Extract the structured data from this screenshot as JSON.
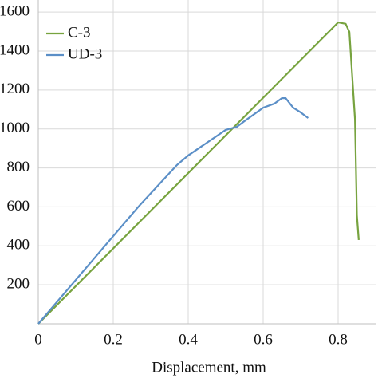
{
  "chart_data": {
    "type": "line",
    "x_label": "Displacement, mm",
    "xlim": [
      0,
      0.9
    ],
    "ylim": [
      0,
      1662
    ],
    "xticks": [
      0,
      0.2,
      0.4,
      0.6,
      0.8
    ],
    "yticks": [
      200,
      400,
      600,
      800,
      1000,
      1200,
      1400,
      1600
    ],
    "grid": true,
    "legend": "upper-left",
    "series": [
      {
        "name": "C-3",
        "color": "#77a33f",
        "x": [
          0,
          0.8,
          0.82,
          0.83,
          0.845,
          0.85,
          0.855
        ],
        "values": [
          0,
          1547,
          1540,
          1498,
          1048,
          557,
          430
        ]
      },
      {
        "name": "UD-3",
        "color": "#5b8fc7",
        "x": [
          0,
          0.1,
          0.2,
          0.27,
          0.37,
          0.4,
          0.5,
          0.53,
          0.55,
          0.6,
          0.63,
          0.65,
          0.66,
          0.68,
          0.7,
          0.72
        ],
        "values": [
          0,
          225,
          450,
          607,
          815,
          864,
          995,
          1011,
          1040,
          1109,
          1130,
          1158,
          1158,
          1109,
          1085,
          1056
        ]
      }
    ]
  }
}
